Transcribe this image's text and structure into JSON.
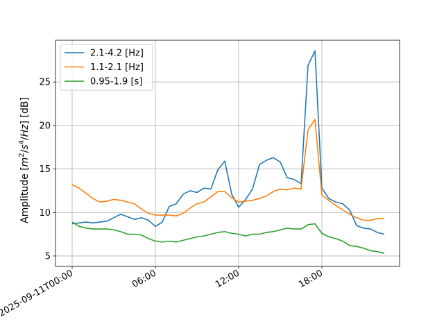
{
  "chart_data": {
    "type": "line",
    "title": "",
    "xlabel": "",
    "ylabel": "Amplitude [m²/s⁴/Hz] [dB]",
    "ylabel_parts": {
      "prefix": "Amplitude [",
      "m": "m",
      "m_exp": "2",
      "slash1": "/",
      "s": "s",
      "s_exp": "4",
      "slash2": "/",
      "hz": "Hz",
      "suffix": "] [dB]"
    },
    "x_unit": "hours since 2025-09-11T00:00",
    "xlim": [
      -1.2,
      23.6
    ],
    "ylim": [
      3.8,
      29.8
    ],
    "x_ticks": [
      {
        "value": 0,
        "label": "2025-09-11T00:00"
      },
      {
        "value": 6,
        "label": "06:00"
      },
      {
        "value": 12,
        "label": "12:00"
      },
      {
        "value": 18,
        "label": "18:00"
      }
    ],
    "y_ticks": [
      {
        "value": 5,
        "label": "5"
      },
      {
        "value": 10,
        "label": "10"
      },
      {
        "value": 15,
        "label": "15"
      },
      {
        "value": 20,
        "label": "20"
      },
      {
        "value": 25,
        "label": "25"
      }
    ],
    "grid": true,
    "legend": "top-left",
    "x": [
      0,
      0.5,
      1,
      1.5,
      2,
      2.5,
      3,
      3.5,
      4,
      4.5,
      5,
      5.5,
      6,
      6.5,
      7,
      7.5,
      8,
      8.5,
      9,
      9.5,
      10,
      10.5,
      11,
      11.5,
      12,
      12.5,
      13,
      13.5,
      14,
      14.5,
      15,
      15.5,
      16,
      16.5,
      17,
      17.5,
      18,
      18.5,
      19,
      19.5,
      20,
      20.5,
      21,
      21.5,
      22,
      22.5
    ],
    "series": [
      {
        "name": "2.1-4.2 [Hz]",
        "color": "#1f77b4",
        "values": [
          8.7,
          8.8,
          8.9,
          8.8,
          8.9,
          9.0,
          9.4,
          9.8,
          9.5,
          9.2,
          9.4,
          9.1,
          8.4,
          8.9,
          10.7,
          11.0,
          12.1,
          12.5,
          12.3,
          12.8,
          12.7,
          14.9,
          15.9,
          12.1,
          10.6,
          11.5,
          12.7,
          15.5,
          16.0,
          16.3,
          15.8,
          14.0,
          13.8,
          13.3,
          26.9,
          28.6,
          12.8,
          11.6,
          11.2,
          11.0,
          10.3,
          8.5,
          8.2,
          8.1,
          7.7,
          7.5
        ]
      },
      {
        "name": "1.1-2.1 [Hz]",
        "color": "#ff7f0e",
        "values": [
          13.2,
          12.8,
          12.2,
          11.6,
          11.2,
          11.3,
          11.5,
          11.4,
          11.2,
          11.0,
          10.4,
          9.9,
          9.7,
          9.7,
          9.7,
          9.6,
          9.9,
          10.5,
          11.0,
          11.2,
          11.8,
          12.4,
          12.4,
          11.7,
          11.2,
          11.3,
          11.4,
          11.6,
          11.9,
          12.4,
          12.7,
          12.6,
          12.8,
          12.7,
          19.5,
          20.7,
          12.0,
          11.4,
          10.8,
          10.3,
          9.8,
          9.4,
          9.1,
          9.1,
          9.3,
          9.3
        ]
      },
      {
        "name": "0.95-1.9 [s]",
        "color": "#2ca02c",
        "values": [
          8.9,
          8.4,
          8.2,
          8.1,
          8.1,
          8.1,
          8.0,
          7.8,
          7.5,
          7.5,
          7.4,
          7.0,
          6.7,
          6.6,
          6.7,
          6.6,
          6.8,
          7.0,
          7.2,
          7.3,
          7.5,
          7.7,
          7.8,
          7.6,
          7.5,
          7.3,
          7.5,
          7.5,
          7.7,
          7.8,
          8.0,
          8.2,
          8.1,
          8.1,
          8.6,
          8.7,
          7.6,
          7.2,
          7.0,
          6.7,
          6.2,
          6.1,
          5.9,
          5.6,
          5.5,
          5.3
        ]
      }
    ]
  }
}
